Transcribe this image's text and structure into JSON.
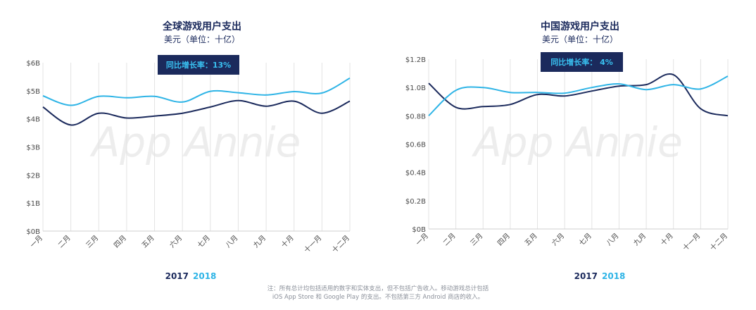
{
  "watermark": "App Annie",
  "legend": {
    "y2017": "2017",
    "y2018": "2018"
  },
  "colors": {
    "c2017": "#1b2a5c",
    "c2018": "#2eb4e6",
    "badge_bg": "#1b2a5c",
    "badge_text": "#39c0f0",
    "grid": "#e3e3e3",
    "axis_text": "#4a4a4a"
  },
  "note": {
    "line1": "注：所有总计均包括适用的数字和实体支出，但不包括广告收入。移动游戏总计包括",
    "line2": "iOS App Store 和 Google Play 的支出。不包括第三方 Android 商店的收入。"
  },
  "chart_data": [
    {
      "type": "line",
      "title": "全球游戏用户支出",
      "subtitle": "美元（单位：十亿）",
      "badge": "同比增长率：13%",
      "categories": [
        "一月",
        "二月",
        "三月",
        "四月",
        "五月",
        "六月",
        "七月",
        "八月",
        "九月",
        "十月",
        "十一月",
        "十二月"
      ],
      "ylim": [
        0,
        6
      ],
      "yticks": [
        0,
        1,
        2,
        3,
        4,
        5,
        6
      ],
      "ytick_labels": [
        "$0B",
        "$1B",
        "$2B",
        "$3B",
        "$4B",
        "$5B",
        "$6B"
      ],
      "grid": "vertical",
      "series": [
        {
          "name": "2017",
          "values": [
            4.42,
            3.78,
            4.2,
            4.03,
            4.1,
            4.2,
            4.42,
            4.65,
            4.45,
            4.63,
            4.2,
            4.63
          ]
        },
        {
          "name": "2018",
          "values": [
            4.82,
            4.48,
            4.8,
            4.75,
            4.8,
            4.6,
            4.98,
            4.93,
            4.85,
            4.97,
            4.92,
            5.45
          ]
        }
      ]
    },
    {
      "type": "line",
      "title": "中国游戏用户支出",
      "subtitle": "美元（单位：十亿）",
      "badge": "同比增长率： 4%",
      "categories": [
        "一月",
        "二月",
        "三月",
        "四月",
        "五月",
        "六月",
        "七月",
        "八月",
        "九月",
        "十月",
        "十一月",
        "十二月"
      ],
      "ylim": [
        0,
        1.2
      ],
      "yticks": [
        0,
        0.2,
        0.4,
        0.6,
        0.8,
        1.0,
        1.2
      ],
      "ytick_labels": [
        "$0B",
        "$0.2B",
        "$0.4B",
        "$0.6B",
        "$0.8B",
        "$1.0B",
        "$1.2B"
      ],
      "grid": "vertical",
      "series": [
        {
          "name": "2017",
          "values": [
            1.03,
            0.86,
            0.865,
            0.88,
            0.95,
            0.94,
            0.975,
            1.01,
            1.02,
            1.09,
            0.85,
            0.8
          ]
        },
        {
          "name": "2018",
          "values": [
            0.8,
            0.98,
            1.0,
            0.965,
            0.965,
            0.96,
            1.0,
            1.025,
            0.985,
            1.02,
            0.99,
            1.08
          ]
        }
      ]
    }
  ]
}
